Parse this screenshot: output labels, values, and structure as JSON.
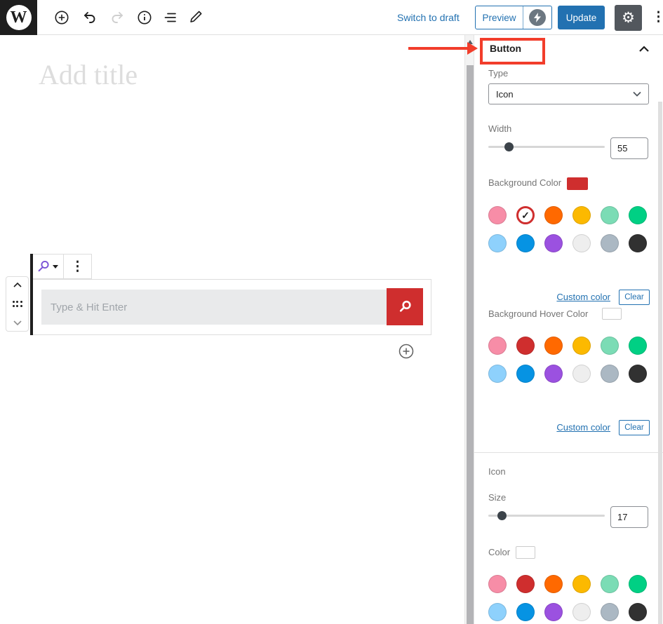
{
  "header": {
    "logo_letter": "W",
    "switch_to_draft": "Switch to draft",
    "preview_label": "Preview",
    "update_label": "Update"
  },
  "editor": {
    "title_placeholder": "Add title",
    "search_placeholder": "Type & Hit Enter"
  },
  "sidebar": {
    "panel_title": "Button",
    "type_label": "Type",
    "type_value": "Icon",
    "width_label": "Width",
    "width_value": "55",
    "background_color_label": "Background Color",
    "background_color_value": "#cf2e2e",
    "background_hover_color_label": "Background Hover Color",
    "custom_color_label": "Custom color",
    "clear_label": "Clear",
    "icon_section_label": "Icon",
    "size_label": "Size",
    "size_value": "17",
    "color_label": "Color",
    "palette": [
      {
        "name": "pale-pink",
        "hex": "#f78da7"
      },
      {
        "name": "vivid-red",
        "hex": "#cf2e2e"
      },
      {
        "name": "luminous-vivid-orange",
        "hex": "#ff6900"
      },
      {
        "name": "luminous-vivid-amber",
        "hex": "#fcb900"
      },
      {
        "name": "light-green-cyan",
        "hex": "#7bdcb5"
      },
      {
        "name": "vivid-green-cyan",
        "hex": "#00d084"
      },
      {
        "name": "pale-cyan-blue",
        "hex": "#8ed1fc"
      },
      {
        "name": "vivid-cyan-blue",
        "hex": "#0693e3"
      },
      {
        "name": "vivid-purple",
        "hex": "#9b51e0"
      },
      {
        "name": "very-light-gray",
        "hex": "#eeeeee"
      },
      {
        "name": "cyan-bluish-gray",
        "hex": "#abb8c3"
      },
      {
        "name": "very-dark-gray",
        "hex": "#313131"
      }
    ]
  },
  "colors": {
    "accent_blue": "#2271b1",
    "annotation_red": "#f23d2b",
    "search_button_red": "#cf2e2e",
    "toolbar_icon_purple": "#7a52d6"
  },
  "icons": {
    "check": "✓",
    "kebab": "⋮",
    "gear": "⚙"
  }
}
